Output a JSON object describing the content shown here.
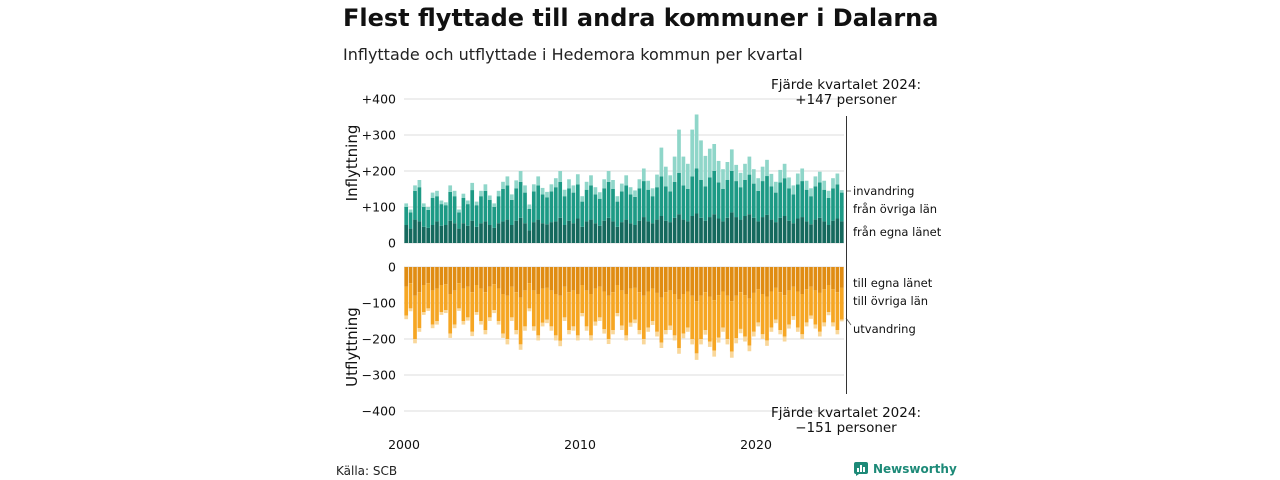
{
  "title": "Flest flyttade till andra kommuner i Dalarna",
  "subtitle": "Inflyttade och utflyttade i Hedemora kommun per kvartal",
  "source": "Källa: SCB",
  "brand": "Newsworthy",
  "colors": {
    "in_egna": "#15695d",
    "in_ovriga": "#1d9a85",
    "in_invandring": "#8fd6c9",
    "ut_egna": "#e08c12",
    "ut_ovriga": "#f6a623",
    "ut_utvandring": "#f9d79a",
    "grid": "#dddddd",
    "brand": "#1d8a78"
  },
  "annotations": {
    "top_line1": "Fjärde kvartalet 2024:",
    "top_line2": "+147 personer",
    "bottom_line1": "Fjärde kvartalet 2024:",
    "bottom_line2": "−151 personer"
  },
  "chart_data": [
    {
      "type": "bar",
      "stacked": true,
      "ylabel": "Inflyttning",
      "ylim": [
        0,
        400
      ],
      "y_ticks": [
        "0",
        "+100",
        "+200",
        "+300",
        "+400"
      ],
      "x_ticks": [
        "2000",
        "2010",
        "2020"
      ],
      "start_year": 2000,
      "end_year": 2024,
      "grid": true,
      "legend_placement": "right",
      "x": [
        "2000Q1",
        "2000Q2",
        "2000Q3",
        "2000Q4",
        "2001Q1",
        "2001Q2",
        "2001Q3",
        "2001Q4",
        "2002Q1",
        "2002Q2",
        "2002Q3",
        "2002Q4",
        "2003Q1",
        "2003Q2",
        "2003Q3",
        "2003Q4",
        "2004Q1",
        "2004Q2",
        "2004Q3",
        "2004Q4",
        "2005Q1",
        "2005Q2",
        "2005Q3",
        "2005Q4",
        "2006Q1",
        "2006Q2",
        "2006Q3",
        "2006Q4",
        "2007Q1",
        "2007Q2",
        "2007Q3",
        "2007Q4",
        "2008Q1",
        "2008Q2",
        "2008Q3",
        "2008Q4",
        "2009Q1",
        "2009Q2",
        "2009Q3",
        "2009Q4",
        "2010Q1",
        "2010Q2",
        "2010Q3",
        "2010Q4",
        "2011Q1",
        "2011Q2",
        "2011Q3",
        "2011Q4",
        "2012Q1",
        "2012Q2",
        "2012Q3",
        "2012Q4",
        "2013Q1",
        "2013Q2",
        "2013Q3",
        "2013Q4",
        "2014Q1",
        "2014Q2",
        "2014Q3",
        "2014Q4",
        "2015Q1",
        "2015Q2",
        "2015Q3",
        "2015Q4",
        "2016Q1",
        "2016Q2",
        "2016Q3",
        "2016Q4",
        "2017Q1",
        "2017Q2",
        "2017Q3",
        "2017Q4",
        "2018Q1",
        "2018Q2",
        "2018Q3",
        "2018Q4",
        "2019Q1",
        "2019Q2",
        "2019Q3",
        "2019Q4",
        "2020Q1",
        "2020Q2",
        "2020Q3",
        "2020Q4",
        "2021Q1",
        "2021Q2",
        "2021Q3",
        "2021Q4",
        "2022Q1",
        "2022Q2",
        "2022Q3",
        "2022Q4",
        "2023Q1",
        "2023Q2",
        "2023Q3",
        "2023Q4",
        "2024Q1",
        "2024Q2",
        "2024Q3",
        "2024Q4"
      ],
      "series": [
        {
          "name": "från egna länet",
          "color_key": "in_egna",
          "values": [
            50,
            40,
            65,
            60,
            45,
            42,
            50,
            60,
            48,
            50,
            62,
            55,
            40,
            55,
            48,
            62,
            45,
            55,
            60,
            50,
            42,
            55,
            60,
            65,
            50,
            62,
            70,
            55,
            35,
            58,
            65,
            55,
            52,
            58,
            60,
            70,
            50,
            62,
            55,
            68,
            45,
            60,
            65,
            55,
            48,
            62,
            70,
            60,
            45,
            58,
            65,
            55,
            50,
            62,
            72,
            60,
            55,
            65,
            75,
            62,
            58,
            70,
            80,
            65,
            60,
            75,
            82,
            70,
            62,
            72,
            80,
            68,
            60,
            70,
            85,
            72,
            65,
            75,
            80,
            70,
            60,
            72,
            78,
            65,
            58,
            70,
            75,
            62,
            55,
            68,
            72,
            60,
            52,
            65,
            70,
            60,
            50,
            62,
            68,
            60
          ]
        },
        {
          "name": "från övriga län",
          "color_key": "in_ovriga",
          "values": [
            50,
            45,
            80,
            95,
            55,
            50,
            75,
            70,
            60,
            55,
            80,
            75,
            45,
            70,
            60,
            85,
            60,
            75,
            85,
            70,
            58,
            75,
            90,
            95,
            70,
            90,
            100,
            85,
            60,
            85,
            95,
            80,
            75,
            85,
            95,
            100,
            80,
            90,
            85,
            95,
            70,
            88,
            95,
            80,
            75,
            90,
            100,
            90,
            70,
            85,
            95,
            80,
            78,
            90,
            100,
            88,
            75,
            90,
            110,
            95,
            85,
            100,
            115,
            95,
            90,
            110,
            125,
            105,
            95,
            110,
            120,
            100,
            90,
            105,
            115,
            100,
            90,
            100,
            110,
            95,
            85,
            100,
            108,
            92,
            82,
            98,
            105,
            90,
            80,
            95,
            100,
            88,
            78,
            92,
            98,
            88,
            75,
            90,
            95,
            80
          ]
        },
        {
          "name": "invandring",
          "color_key": "in_invandring",
          "values": [
            10,
            8,
            15,
            20,
            10,
            8,
            15,
            15,
            10,
            8,
            18,
            15,
            8,
            12,
            10,
            20,
            10,
            15,
            18,
            12,
            10,
            15,
            20,
            25,
            15,
            22,
            30,
            20,
            12,
            20,
            25,
            18,
            15,
            20,
            25,
            30,
            18,
            25,
            20,
            28,
            15,
            22,
            28,
            20,
            18,
            25,
            30,
            25,
            15,
            22,
            28,
            20,
            18,
            25,
            35,
            25,
            22,
            35,
            80,
            55,
            45,
            70,
            120,
            80,
            70,
            130,
            150,
            110,
            85,
            80,
            75,
            60,
            55,
            50,
            60,
            45,
            40,
            45,
            50,
            40,
            35,
            40,
            45,
            35,
            30,
            35,
            40,
            30,
            25,
            30,
            35,
            25,
            22,
            28,
            30,
            25,
            20,
            28,
            30,
            7
          ]
        }
      ]
    },
    {
      "type": "bar",
      "stacked": true,
      "ylabel": "Utflyttning",
      "ylim": [
        -400,
        0
      ],
      "y_ticks": [
        "0",
        "−100",
        "−200",
        "−300",
        "−400"
      ],
      "x_ticks": [
        "2000",
        "2010",
        "2020"
      ],
      "start_year": 2000,
      "end_year": 2024,
      "grid": true,
      "legend_placement": "right",
      "x": [
        "2000Q1",
        "2000Q2",
        "2000Q3",
        "2000Q4",
        "2001Q1",
        "2001Q2",
        "2001Q3",
        "2001Q4",
        "2002Q1",
        "2002Q2",
        "2002Q3",
        "2002Q4",
        "2003Q1",
        "2003Q2",
        "2003Q3",
        "2003Q4",
        "2004Q1",
        "2004Q2",
        "2004Q3",
        "2004Q4",
        "2005Q1",
        "2005Q2",
        "2005Q3",
        "2005Q4",
        "2006Q1",
        "2006Q2",
        "2006Q3",
        "2006Q4",
        "2007Q1",
        "2007Q2",
        "2007Q3",
        "2007Q4",
        "2008Q1",
        "2008Q2",
        "2008Q3",
        "2008Q4",
        "2009Q1",
        "2009Q2",
        "2009Q3",
        "2009Q4",
        "2010Q1",
        "2010Q2",
        "2010Q3",
        "2010Q4",
        "2011Q1",
        "2011Q2",
        "2011Q3",
        "2011Q4",
        "2012Q1",
        "2012Q2",
        "2012Q3",
        "2012Q4",
        "2013Q1",
        "2013Q2",
        "2013Q3",
        "2013Q4",
        "2014Q1",
        "2014Q2",
        "2014Q3",
        "2014Q4",
        "2015Q1",
        "2015Q2",
        "2015Q3",
        "2015Q4",
        "2016Q1",
        "2016Q2",
        "2016Q3",
        "2016Q4",
        "2017Q1",
        "2017Q2",
        "2017Q3",
        "2017Q4",
        "2018Q1",
        "2018Q2",
        "2018Q3",
        "2018Q4",
        "2019Q1",
        "2019Q2",
        "2019Q3",
        "2019Q4",
        "2020Q1",
        "2020Q2",
        "2020Q3",
        "2020Q4",
        "2021Q1",
        "2021Q2",
        "2021Q3",
        "2021Q4",
        "2022Q1",
        "2022Q2",
        "2022Q3",
        "2022Q4",
        "2023Q1",
        "2023Q2",
        "2023Q3",
        "2023Q4",
        "2024Q1",
        "2024Q2",
        "2024Q3",
        "2024Q4"
      ],
      "series": [
        {
          "name": "till egna länet",
          "color_key": "ut_egna",
          "values": [
            -55,
            -45,
            -80,
            -70,
            -50,
            -45,
            -65,
            -60,
            -50,
            -48,
            -75,
            -65,
            -45,
            -60,
            -55,
            -70,
            -50,
            -60,
            -70,
            -55,
            -48,
            -60,
            -75,
            -80,
            -55,
            -70,
            -85,
            -65,
            -45,
            -65,
            -75,
            -60,
            -58,
            -65,
            -75,
            -80,
            -55,
            -70,
            -65,
            -75,
            -50,
            -65,
            -75,
            -60,
            -55,
            -68,
            -80,
            -70,
            -50,
            -65,
            -75,
            -60,
            -58,
            -70,
            -80,
            -68,
            -60,
            -72,
            -85,
            -70,
            -65,
            -75,
            -90,
            -75,
            -68,
            -80,
            -95,
            -80,
            -70,
            -82,
            -92,
            -78,
            -68,
            -80,
            -95,
            -80,
            -70,
            -78,
            -88,
            -72,
            -62,
            -75,
            -82,
            -68,
            -58,
            -70,
            -78,
            -65,
            -55,
            -68,
            -75,
            -62,
            -55,
            -65,
            -72,
            -62,
            -50,
            -62,
            -70,
            -58
          ]
        },
        {
          "name": "till övriga län",
          "color_key": "ut_ovriga",
          "values": [
            -80,
            -70,
            -120,
            -100,
            -75,
            -70,
            -95,
            -90,
            -75,
            -72,
            -110,
            -95,
            -70,
            -90,
            -85,
            -110,
            -75,
            -90,
            -105,
            -85,
            -72,
            -90,
            -110,
            -120,
            -85,
            -105,
            -130,
            -100,
            -70,
            -100,
            -115,
            -95,
            -88,
            -100,
            -115,
            -125,
            -85,
            -105,
            -100,
            -115,
            -78,
            -100,
            -115,
            -92,
            -85,
            -105,
            -120,
            -105,
            -78,
            -98,
            -115,
            -95,
            -88,
            -105,
            -120,
            -100,
            -90,
            -108,
            -125,
            -105,
            -98,
            -115,
            -135,
            -110,
            -100,
            -120,
            -145,
            -120,
            -105,
            -125,
            -140,
            -118,
            -100,
            -120,
            -140,
            -118,
            -102,
            -115,
            -130,
            -108,
            -92,
            -112,
            -122,
            -100,
            -88,
            -105,
            -115,
            -95,
            -82,
            -100,
            -112,
            -92,
            -80,
            -95,
            -108,
            -92,
            -75,
            -92,
            -105,
            -88
          ]
        },
        {
          "name": "utvandring",
          "color_key": "ut_utvandring",
          "values": [
            -10,
            -8,
            -12,
            -10,
            -8,
            -7,
            -10,
            -10,
            -8,
            -8,
            -12,
            -10,
            -7,
            -10,
            -9,
            -12,
            -8,
            -10,
            -12,
            -10,
            -8,
            -10,
            -12,
            -15,
            -10,
            -12,
            -15,
            -12,
            -8,
            -12,
            -14,
            -10,
            -10,
            -12,
            -14,
            -15,
            -10,
            -12,
            -12,
            -14,
            -9,
            -12,
            -14,
            -11,
            -10,
            -12,
            -14,
            -12,
            -9,
            -12,
            -14,
            -11,
            -10,
            -12,
            -15,
            -12,
            -11,
            -13,
            -15,
            -12,
            -12,
            -14,
            -16,
            -13,
            -12,
            -15,
            -18,
            -15,
            -13,
            -15,
            -17,
            -14,
            -12,
            -15,
            -17,
            -14,
            -12,
            -14,
            -16,
            -13,
            -11,
            -13,
            -15,
            -12,
            -10,
            -12,
            -14,
            -11,
            -10,
            -12,
            -13,
            -11,
            -9,
            -11,
            -13,
            -11,
            -9,
            -11,
            -12,
            -5
          ]
        }
      ]
    }
  ]
}
